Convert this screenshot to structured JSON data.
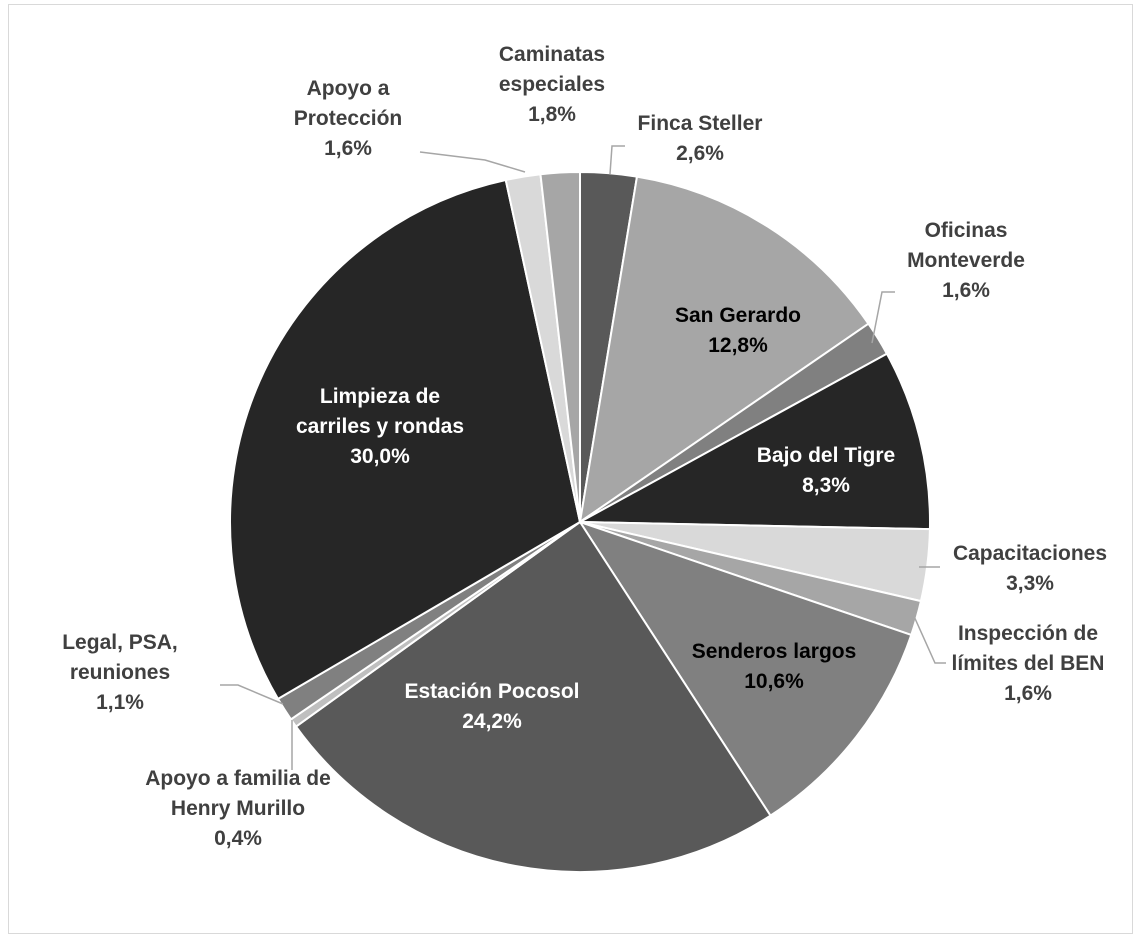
{
  "chart_data": {
    "type": "pie",
    "title": "",
    "slices": [
      {
        "name_lines": [
          "Finca Steller"
        ],
        "value_label": "2,6%",
        "value": 2.6,
        "color": "#595959",
        "label_color": "#000000"
      },
      {
        "name_lines": [
          "San Gerardo"
        ],
        "value_label": "12,8%",
        "value": 12.8,
        "color": "#a6a6a6",
        "label_color": "#000000"
      },
      {
        "name_lines": [
          "Oficinas",
          "Monteverde"
        ],
        "value_label": "1,6%",
        "value": 1.6,
        "color": "#808080",
        "label_color": "#000000"
      },
      {
        "name_lines": [
          "Bajo del Tigre"
        ],
        "value_label": "8,3%",
        "value": 8.3,
        "color": "#262626",
        "label_color": "#ffffff"
      },
      {
        "name_lines": [
          "Capacitaciones"
        ],
        "value_label": "3,3%",
        "value": 3.3,
        "color": "#d9d9d9",
        "label_color": "#000000"
      },
      {
        "name_lines": [
          "Inspección de",
          "límites del BEN"
        ],
        "value_label": "1,6%",
        "value": 1.6,
        "color": "#a6a6a6",
        "label_color": "#000000"
      },
      {
        "name_lines": [
          "Senderos largos"
        ],
        "value_label": "10,6%",
        "value": 10.6,
        "color": "#808080",
        "label_color": "#000000"
      },
      {
        "name_lines": [
          "Estación Pocosol"
        ],
        "value_label": "24,2%",
        "value": 24.2,
        "color": "#595959",
        "label_color": "#ffffff"
      },
      {
        "name_lines": [
          "Apoyo a familia de",
          "Henry Murillo"
        ],
        "value_label": "0,4%",
        "value": 0.4,
        "color": "#bfbfbf",
        "label_color": "#000000"
      },
      {
        "name_lines": [
          "Legal, PSA,",
          "reuniones"
        ],
        "value_label": "1,1%",
        "value": 1.1,
        "color": "#808080",
        "label_color": "#000000"
      },
      {
        "name_lines": [
          "Limpieza de",
          "carriles y rondas"
        ],
        "value_label": "30,0%",
        "value": 30.0,
        "color": "#262626",
        "label_color": "#ffffff"
      },
      {
        "name_lines": [
          "Apoyo a",
          "Protección"
        ],
        "value_label": "1,6%",
        "value": 1.6,
        "color": "#d9d9d9",
        "label_color": "#000000"
      },
      {
        "name_lines": [
          "Caminatas",
          "especiales"
        ],
        "value_label": "1,8%",
        "value": 1.8,
        "color": "#a6a6a6",
        "label_color": "#000000"
      }
    ]
  }
}
